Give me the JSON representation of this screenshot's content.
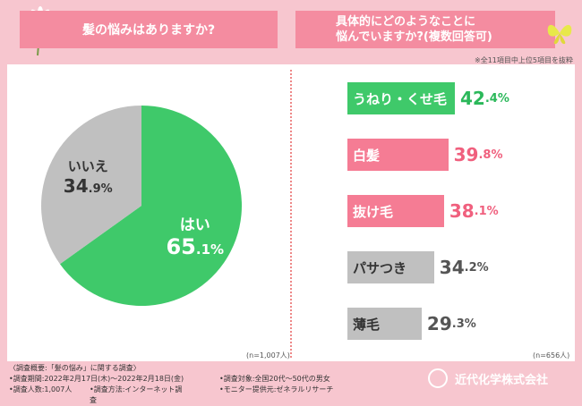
{
  "header": {
    "q1": "髪の悩みはありますか?",
    "q2_line1": "具体的にどのようなことに",
    "q2_line2": "悩んでいますか?(複数回答可)",
    "note": "※全11項目中上位5項目を抜粋"
  },
  "chart_data": [
    {
      "type": "pie",
      "slices": [
        {
          "label": "はい",
          "value": 65.1,
          "color": "#3fc96a"
        },
        {
          "label": "いいえ",
          "value": 34.9,
          "color": "#c0c0c0"
        }
      ],
      "n_label": "(n=1,007人)"
    },
    {
      "type": "bar",
      "categories": [
        "うねり・くせ毛",
        "白髪",
        "抜け毛",
        "パサつき",
        "薄毛"
      ],
      "values": [
        42.4,
        39.8,
        38.1,
        34.2,
        29.3
      ],
      "colors": [
        "#3fc96a",
        "#f57c94",
        "#f57c94",
        "#c0c0c0",
        "#c0c0c0"
      ],
      "value_colors": [
        "#2bb85a",
        "#f0607e",
        "#f0607e",
        "#555555",
        "#555555"
      ],
      "n_label": "(n=656人)"
    }
  ],
  "footer": {
    "title": "〈調査概要:「髪の悩み」に関する調査〉",
    "period": "•調査期間:2022年2月17日(木)〜2022年2月18日(金)",
    "count": "•調査人数:1,007人",
    "method": "•調査方法:インターネット調査",
    "target": "•調査対象:全国20代〜50代の男女",
    "provider": "•モニター提供元:ゼネラルリサーチ",
    "company": "近代化学株式会社"
  },
  "colors": {
    "background": "#f7c6cf",
    "header": "#f48ca0"
  },
  "icons": {
    "flower": "flower-icon",
    "butterfly": "butterfly-icon",
    "logo": "company-logo-icon"
  }
}
